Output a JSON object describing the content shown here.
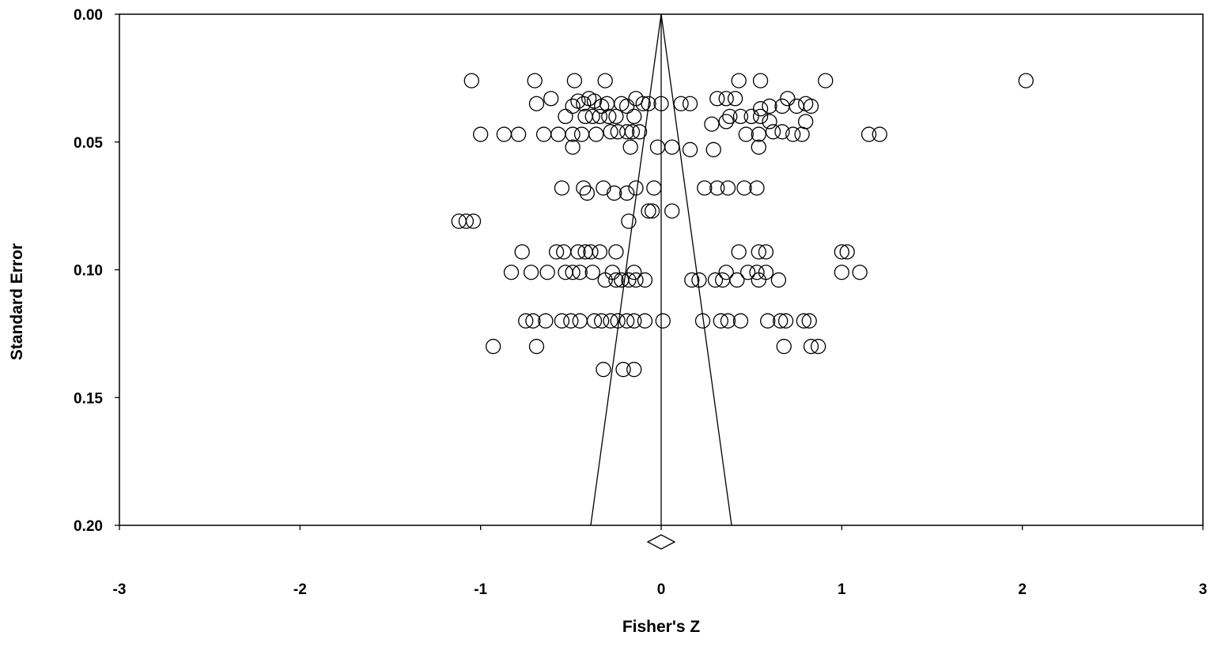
{
  "chart_data": {
    "type": "scatter",
    "title": "",
    "xlabel": "Fisher's Z",
    "ylabel": "Standard Error",
    "xlim": [
      -3,
      3
    ],
    "ylim": [
      0.2,
      0.0
    ],
    "y_reversed": true,
    "x_ticks": [
      "-3",
      "-2",
      "-1",
      "0",
      "1",
      "2",
      "3"
    ],
    "y_ticks": [
      "0.00",
      "0.05",
      "0.10",
      "0.15",
      "0.20"
    ],
    "grid": false,
    "legend": "none",
    "funnel": {
      "center": 0.0,
      "apex_se": 0.0,
      "base_se": 0.2,
      "base_half_width": 0.39
    },
    "summary_estimate": 0.0,
    "marker": "open-circle",
    "series": [
      {
        "points": [
          [
            -1.05,
            0.026
          ],
          [
            -0.7,
            0.026
          ],
          [
            -0.48,
            0.026
          ],
          [
            -0.31,
            0.026
          ],
          [
            0.43,
            0.026
          ],
          [
            0.55,
            0.026
          ],
          [
            0.91,
            0.026
          ],
          [
            2.02,
            0.026
          ],
          [
            -0.69,
            0.035
          ],
          [
            -0.61,
            0.033
          ],
          [
            -0.49,
            0.036
          ],
          [
            -0.46,
            0.034
          ],
          [
            -0.43,
            0.035
          ],
          [
            -0.4,
            0.033
          ],
          [
            -0.37,
            0.034
          ],
          [
            -0.33,
            0.036
          ],
          [
            -0.3,
            0.035
          ],
          [
            -0.22,
            0.035
          ],
          [
            -0.19,
            0.036
          ],
          [
            -0.14,
            0.033
          ],
          [
            -0.1,
            0.035
          ],
          [
            -0.07,
            0.035
          ],
          [
            0.0,
            0.035
          ],
          [
            0.11,
            0.035
          ],
          [
            0.16,
            0.035
          ],
          [
            0.31,
            0.033
          ],
          [
            0.36,
            0.033
          ],
          [
            0.41,
            0.033
          ],
          [
            0.55,
            0.037
          ],
          [
            0.6,
            0.036
          ],
          [
            0.67,
            0.036
          ],
          [
            0.7,
            0.033
          ],
          [
            0.75,
            0.036
          ],
          [
            0.8,
            0.035
          ],
          [
            0.83,
            0.036
          ],
          [
            -0.53,
            0.04
          ],
          [
            -0.42,
            0.04
          ],
          [
            -0.38,
            0.04
          ],
          [
            -0.34,
            0.04
          ],
          [
            -0.29,
            0.04
          ],
          [
            -0.25,
            0.04
          ],
          [
            -0.15,
            0.04
          ],
          [
            0.36,
            0.042
          ],
          [
            0.38,
            0.04
          ],
          [
            0.44,
            0.04
          ],
          [
            0.5,
            0.04
          ],
          [
            0.55,
            0.04
          ],
          [
            0.6,
            0.042
          ],
          [
            0.8,
            0.042
          ],
          [
            -1.0,
            0.047
          ],
          [
            -0.87,
            0.047
          ],
          [
            -0.79,
            0.047
          ],
          [
            -0.65,
            0.047
          ],
          [
            -0.57,
            0.047
          ],
          [
            -0.49,
            0.047
          ],
          [
            -0.44,
            0.047
          ],
          [
            -0.36,
            0.047
          ],
          [
            -0.28,
            0.046
          ],
          [
            -0.24,
            0.046
          ],
          [
            -0.19,
            0.046
          ],
          [
            -0.16,
            0.046
          ],
          [
            -0.12,
            0.046
          ],
          [
            0.28,
            0.043
          ],
          [
            0.47,
            0.047
          ],
          [
            0.54,
            0.047
          ],
          [
            0.62,
            0.046
          ],
          [
            0.67,
            0.046
          ],
          [
            0.73,
            0.047
          ],
          [
            0.78,
            0.047
          ],
          [
            1.15,
            0.047
          ],
          [
            1.21,
            0.047
          ],
          [
            -0.49,
            0.052
          ],
          [
            -0.17,
            0.052
          ],
          [
            -0.02,
            0.052
          ],
          [
            0.06,
            0.052
          ],
          [
            0.16,
            0.053
          ],
          [
            0.29,
            0.053
          ],
          [
            0.54,
            0.052
          ],
          [
            -0.55,
            0.068
          ],
          [
            -0.43,
            0.068
          ],
          [
            -0.41,
            0.07
          ],
          [
            -0.32,
            0.068
          ],
          [
            -0.26,
            0.07
          ],
          [
            -0.19,
            0.07
          ],
          [
            -0.14,
            0.068
          ],
          [
            -0.04,
            0.068
          ],
          [
            0.24,
            0.068
          ],
          [
            0.31,
            0.068
          ],
          [
            0.37,
            0.068
          ],
          [
            0.46,
            0.068
          ],
          [
            0.53,
            0.068
          ],
          [
            -0.07,
            0.077
          ],
          [
            -0.05,
            0.077
          ],
          [
            0.06,
            0.077
          ],
          [
            -1.12,
            0.081
          ],
          [
            -1.08,
            0.081
          ],
          [
            -1.04,
            0.081
          ],
          [
            -0.18,
            0.081
          ],
          [
            -0.77,
            0.093
          ],
          [
            -0.58,
            0.093
          ],
          [
            -0.54,
            0.093
          ],
          [
            -0.46,
            0.093
          ],
          [
            -0.42,
            0.093
          ],
          [
            -0.39,
            0.093
          ],
          [
            -0.34,
            0.093
          ],
          [
            -0.25,
            0.093
          ],
          [
            0.43,
            0.093
          ],
          [
            0.54,
            0.093
          ],
          [
            0.58,
            0.093
          ],
          [
            1.0,
            0.093
          ],
          [
            1.03,
            0.093
          ],
          [
            -0.83,
            0.101
          ],
          [
            -0.72,
            0.101
          ],
          [
            -0.63,
            0.101
          ],
          [
            -0.53,
            0.101
          ],
          [
            -0.49,
            0.101
          ],
          [
            -0.45,
            0.101
          ],
          [
            -0.38,
            0.101
          ],
          [
            -0.27,
            0.101
          ],
          [
            -0.15,
            0.101
          ],
          [
            0.36,
            0.101
          ],
          [
            0.48,
            0.101
          ],
          [
            0.53,
            0.101
          ],
          [
            0.58,
            0.101
          ],
          [
            1.0,
            0.101
          ],
          [
            1.1,
            0.101
          ],
          [
            -0.31,
            0.104
          ],
          [
            -0.25,
            0.104
          ],
          [
            -0.22,
            0.104
          ],
          [
            -0.18,
            0.104
          ],
          [
            -0.14,
            0.104
          ],
          [
            -0.09,
            0.104
          ],
          [
            0.17,
            0.104
          ],
          [
            0.21,
            0.104
          ],
          [
            0.3,
            0.104
          ],
          [
            0.34,
            0.104
          ],
          [
            0.42,
            0.104
          ],
          [
            0.54,
            0.104
          ],
          [
            0.65,
            0.104
          ],
          [
            -0.75,
            0.12
          ],
          [
            -0.71,
            0.12
          ],
          [
            -0.64,
            0.12
          ],
          [
            -0.55,
            0.12
          ],
          [
            -0.5,
            0.12
          ],
          [
            -0.45,
            0.12
          ],
          [
            -0.37,
            0.12
          ],
          [
            -0.33,
            0.12
          ],
          [
            -0.28,
            0.12
          ],
          [
            -0.24,
            0.12
          ],
          [
            -0.19,
            0.12
          ],
          [
            -0.15,
            0.12
          ],
          [
            -0.09,
            0.12
          ],
          [
            0.01,
            0.12
          ],
          [
            0.23,
            0.12
          ],
          [
            0.33,
            0.12
          ],
          [
            0.37,
            0.12
          ],
          [
            0.44,
            0.12
          ],
          [
            0.59,
            0.12
          ],
          [
            0.66,
            0.12
          ],
          [
            0.69,
            0.12
          ],
          [
            0.79,
            0.12
          ],
          [
            0.82,
            0.12
          ],
          [
            -0.93,
            0.13
          ],
          [
            -0.69,
            0.13
          ],
          [
            0.68,
            0.13
          ],
          [
            0.83,
            0.13
          ],
          [
            0.87,
            0.13
          ],
          [
            -0.32,
            0.139
          ],
          [
            -0.21,
            0.139
          ],
          [
            -0.15,
            0.139
          ]
        ]
      }
    ]
  }
}
